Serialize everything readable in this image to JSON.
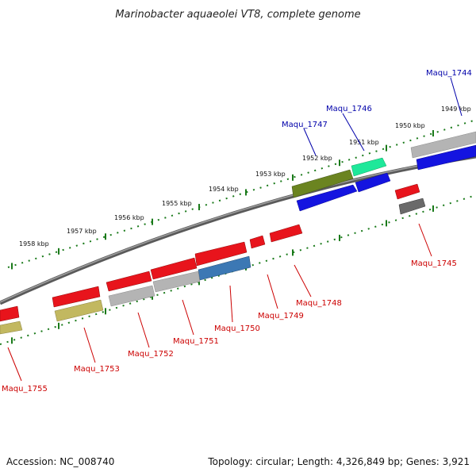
{
  "title": "Marinobacter aquaeolei VT8, complete genome",
  "footer": {
    "accession": "Accession: NC_008740",
    "topology": "Topology: circular; Length: 4,326,849 bp; Genes: 3,921"
  },
  "colors": {
    "red": "#e8141c",
    "blue": "#1414e0",
    "olive": "#6b8420",
    "teal": "#1ee89a",
    "khaki": "#c2b860",
    "gray": "#b4b4b4",
    "darkgray": "#6a6a6a",
    "steelblue": "#3c78b4",
    "tick": "#1a7a1a"
  },
  "kbp_labels": [
    "1949 kbp",
    "1950 kbp",
    "1951 kbp",
    "1952 kbp",
    "1953 kbp",
    "1954 kbp",
    "1955 kbp",
    "1956 kbp",
    "1957 kbp",
    "1958 kbp"
  ],
  "gene_labels": [
    "Maqu_1744",
    "Maqu_1745",
    "Maqu_1746",
    "Maqu_1747",
    "Maqu_1748",
    "Maqu_1749",
    "Maqu_1750",
    "Maqu_1751",
    "Maqu_1752",
    "Maqu_1753",
    "Maqu_1755"
  ]
}
